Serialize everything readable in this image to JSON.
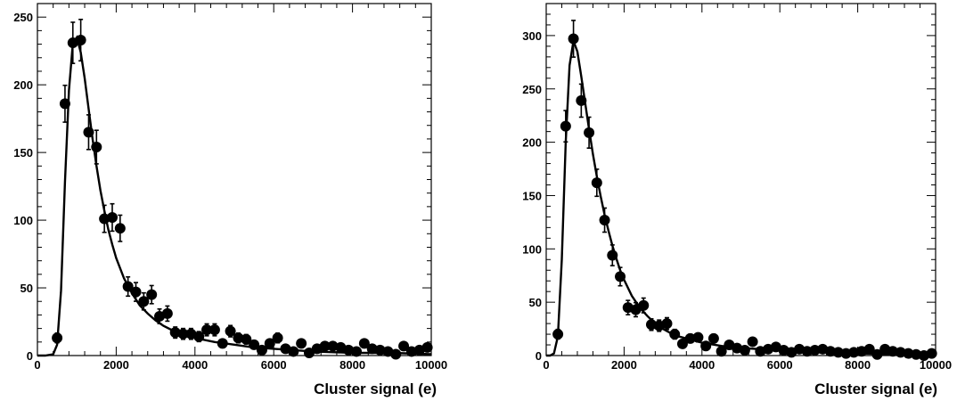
{
  "chart_data": [
    {
      "type": "scatter",
      "title": "",
      "xlabel": "Cluster signal (e)",
      "ylabel": "",
      "xlim": [
        0,
        10000
      ],
      "ylim": [
        0,
        260
      ],
      "xticks": [
        0,
        2000,
        4000,
        6000,
        8000,
        10000
      ],
      "xtick_labels": [
        "0",
        "2000",
        "4000",
        "6000",
        "8000",
        "10000"
      ],
      "yticks": [
        0,
        50,
        100,
        150,
        200,
        250
      ],
      "ytick_labels": [
        "0",
        "50",
        "100",
        "150",
        "200",
        "250"
      ],
      "grid": false,
      "legend": "none",
      "marker_color": "#000000",
      "series": [
        {
          "kind": "points_with_errors",
          "x": [
            500,
            700,
            900,
            1100,
            1300,
            1500,
            1700,
            1900,
            2100,
            2300,
            2500,
            2700,
            2900,
            3100,
            3300,
            3500,
            3700,
            3900,
            4100,
            4300,
            4500,
            4700,
            4900,
            5100,
            5300,
            5500,
            5700,
            5900,
            6100,
            6300,
            6500,
            6700,
            6900,
            7100,
            7300,
            7500,
            7700,
            7900,
            8100,
            8300,
            8500,
            8700,
            8900,
            9100,
            9300,
            9500,
            9700,
            9900
          ],
          "y": [
            13,
            186,
            231,
            233,
            165,
            154,
            101,
            102,
            94,
            51,
            47,
            40,
            45,
            29,
            31,
            17,
            16,
            16,
            14,
            19,
            19,
            9,
            18,
            13,
            12,
            8,
            4,
            9,
            13,
            5,
            3,
            9,
            2,
            5,
            7,
            7,
            6,
            4,
            3,
            9,
            5,
            4,
            3,
            1,
            7,
            3,
            4,
            6
          ],
          "yerr": [
            3.6,
            13.6,
            15.2,
            15.3,
            12.8,
            12.4,
            10.0,
            10.1,
            9.7,
            7.1,
            6.9,
            6.3,
            6.7,
            5.4,
            5.6,
            4.1,
            4.0,
            4.0,
            3.7,
            4.4,
            4.4,
            3.0,
            4.2,
            3.6,
            3.5,
            2.8,
            2.0,
            3.0,
            3.6,
            2.2,
            1.7,
            3.0,
            1.4,
            2.2,
            2.6,
            2.6,
            2.4,
            2.0,
            1.7,
            3.0,
            2.2,
            2.0,
            1.7,
            1.0,
            2.6,
            1.7,
            2.0,
            2.4
          ]
        },
        {
          "kind": "fit_curve",
          "x": [
            0,
            200,
            400,
            500,
            600,
            700,
            800,
            900,
            1000,
            1100,
            1200,
            1300,
            1400,
            1500,
            1600,
            1700,
            1800,
            1900,
            2000,
            2200,
            2400,
            2600,
            2800,
            3000,
            3200,
            3400,
            3600,
            3800,
            4000,
            4500,
            5000,
            5500,
            6000,
            7000,
            8000,
            9000,
            10000
          ],
          "y": [
            0,
            0,
            1,
            8,
            48,
            128,
            196,
            231,
            235,
            224,
            205,
            182,
            160,
            140,
            122,
            107,
            93,
            82,
            72,
            57,
            46,
            37,
            31,
            26,
            22,
            19,
            17,
            15,
            13,
            10,
            8,
            6,
            5,
            3,
            2,
            2,
            1
          ]
        }
      ]
    },
    {
      "type": "scatter",
      "title": "",
      "xlabel": "Cluster signal (e)",
      "ylabel": "",
      "xlim": [
        0,
        10000
      ],
      "ylim": [
        0,
        330
      ],
      "xticks": [
        0,
        2000,
        4000,
        6000,
        8000,
        10000
      ],
      "xtick_labels": [
        "0",
        "2000",
        "4000",
        "6000",
        "8000",
        "10000"
      ],
      "yticks": [
        0,
        50,
        100,
        150,
        200,
        250,
        300
      ],
      "ytick_labels": [
        "0",
        "50",
        "100",
        "150",
        "200",
        "250",
        "300"
      ],
      "grid": false,
      "legend": "none",
      "marker_color": "#000000",
      "series": [
        {
          "kind": "points_with_errors",
          "x": [
            300,
            500,
            700,
            900,
            1100,
            1300,
            1500,
            1700,
            1900,
            2100,
            2300,
            2500,
            2700,
            2900,
            3100,
            3300,
            3500,
            3700,
            3900,
            4100,
            4300,
            4500,
            4700,
            4900,
            5100,
            5300,
            5500,
            5700,
            5900,
            6100,
            6300,
            6500,
            6700,
            6900,
            7100,
            7300,
            7500,
            7700,
            7900,
            8100,
            8300,
            8500,
            8700,
            8900,
            9100,
            9300,
            9500,
            9700,
            9900
          ],
          "y": [
            20,
            215,
            297,
            239,
            209,
            162,
            127,
            94,
            74,
            45,
            43,
            47,
            29,
            28,
            30,
            20,
            11,
            16,
            17,
            9,
            16,
            4,
            10,
            7,
            5,
            13,
            4,
            6,
            8,
            5,
            3,
            6,
            4,
            5,
            6,
            4,
            3,
            2,
            3,
            4,
            6,
            1,
            6,
            4,
            3,
            2,
            1,
            0,
            2
          ],
          "yerr": [
            4.5,
            14.7,
            17.2,
            15.5,
            14.5,
            12.7,
            11.3,
            9.7,
            8.6,
            6.7,
            6.6,
            6.9,
            5.4,
            5.3,
            5.5,
            4.5,
            3.3,
            4.0,
            4.1,
            3.0,
            4.0,
            2.0,
            3.2,
            2.6,
            2.2,
            3.6,
            2.0,
            2.4,
            2.8,
            2.2,
            1.7,
            2.4,
            2.0,
            2.2,
            2.4,
            2.0,
            1.7,
            1.4,
            1.7,
            2.0,
            2.4,
            1.0,
            2.4,
            2.0,
            1.7,
            1.4,
            1.0,
            0,
            1.4
          ]
        },
        {
          "kind": "fit_curve",
          "x": [
            0,
            100,
            200,
            300,
            400,
            500,
            600,
            700,
            800,
            900,
            1000,
            1100,
            1200,
            1300,
            1400,
            1500,
            1600,
            1700,
            1800,
            1900,
            2000,
            2200,
            2400,
            2600,
            2800,
            3000,
            3200,
            3400,
            3600,
            4000,
            4500,
            5000,
            6000,
            7000,
            8000,
            9000,
            10000
          ],
          "y": [
            0,
            0,
            2,
            18,
            90,
            200,
            272,
            295,
            285,
            262,
            237,
            212,
            189,
            168,
            149,
            132,
            117,
            103,
            91,
            80,
            71,
            56,
            45,
            37,
            30,
            25,
            21,
            18,
            16,
            12,
            9,
            7,
            5,
            3,
            2,
            1,
            1
          ]
        }
      ]
    }
  ]
}
